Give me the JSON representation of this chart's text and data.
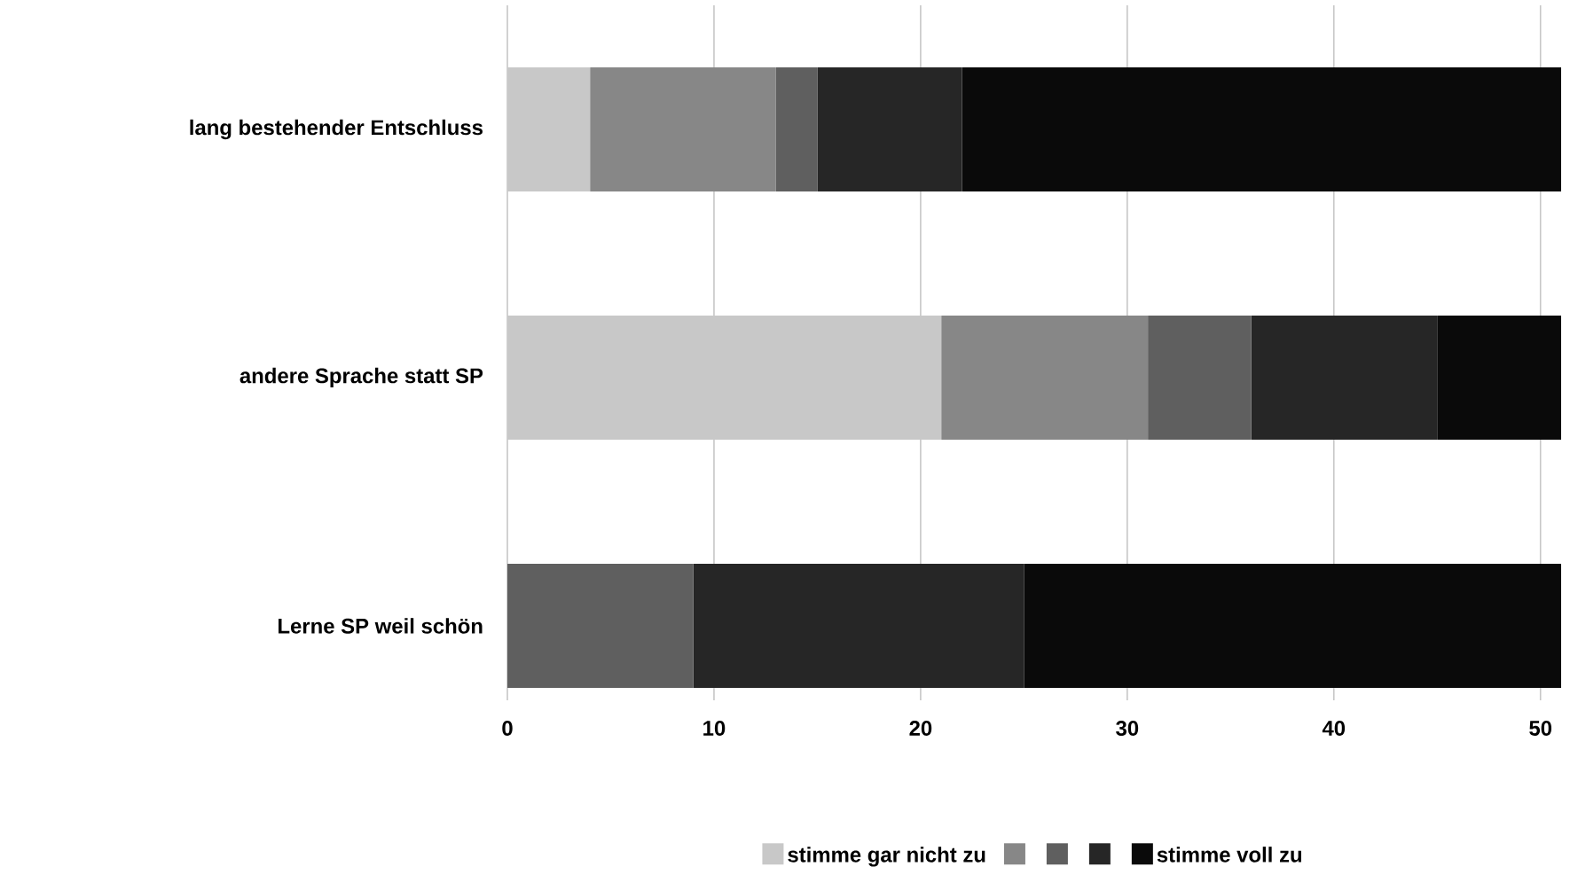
{
  "chart_data": {
    "type": "bar",
    "orientation": "horizontal",
    "stacked": true,
    "categories": [
      "lang bestehender Entschluss",
      "andere Sprache statt SP",
      "Lerne SP weil schön"
    ],
    "series": [
      {
        "name": "stimme gar nicht zu",
        "color": "#c8c8c8",
        "values": [
          4,
          21,
          0
        ]
      },
      {
        "color": "#878787",
        "values": [
          9,
          10,
          0
        ]
      },
      {
        "color": "#5f5f5f",
        "values": [
          2,
          5,
          9
        ]
      },
      {
        "color": "#262626",
        "values": [
          7,
          9,
          16
        ]
      },
      {
        "name": "stimme voll zu",
        "color": "#0a0a0a",
        "values": [
          29,
          6,
          26
        ]
      }
    ],
    "xlim": [
      0,
      51
    ],
    "xticks": [
      0,
      10,
      20,
      30,
      40,
      50
    ],
    "grid": "x",
    "legend": "bottom"
  }
}
